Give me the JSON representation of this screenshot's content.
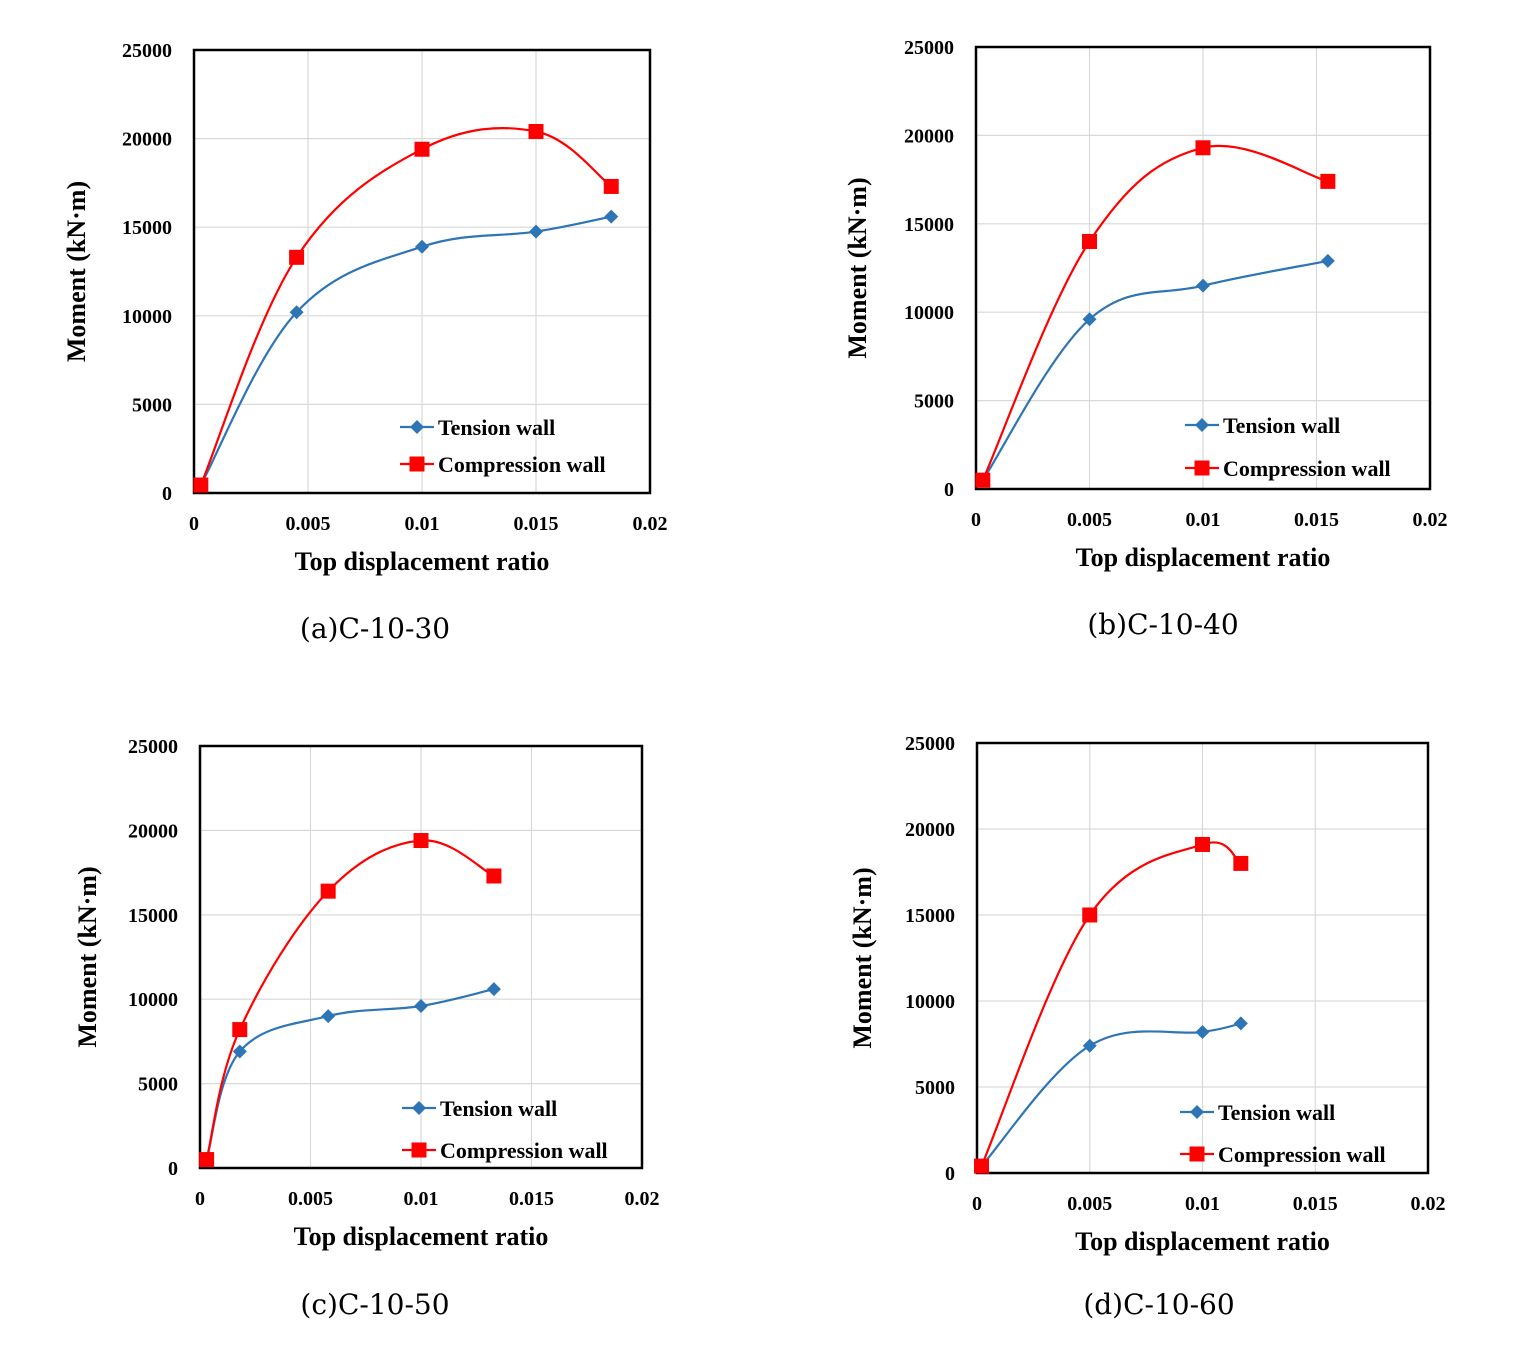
{
  "colors": {
    "tension": "#2e75b6",
    "compression": "#ff0000",
    "grid": "#d9d9d9",
    "frame": "#000000"
  },
  "legend_placement": "bottom-right",
  "chart_data": [
    {
      "type": "line",
      "caption": "(a)C-10-30",
      "xlabel": "Top displacement ratio",
      "ylabel": "Moment (kN·m)",
      "xlim": [
        0,
        0.02
      ],
      "ylim": [
        0,
        25000
      ],
      "xticks": [
        "0",
        "0.005",
        "0.01",
        "0.015",
        "0.02"
      ],
      "yticks": [
        "0",
        "5000",
        "10000",
        "15000",
        "20000",
        "25000"
      ],
      "grid": true,
      "series": [
        {
          "name": "Tension wall",
          "marker": "diamond",
          "points": [
            [
              0.0003,
              450
            ],
            [
              0.0045,
              10200
            ],
            [
              0.01,
              13900
            ],
            [
              0.015,
              14750
            ],
            [
              0.0183,
              15600
            ]
          ]
        },
        {
          "name": "Compression wall",
          "marker": "square",
          "points": [
            [
              0.0003,
              450
            ],
            [
              0.0045,
              13300
            ],
            [
              0.01,
              19400
            ],
            [
              0.015,
              20400
            ],
            [
              0.0183,
              17300
            ]
          ]
        }
      ]
    },
    {
      "type": "line",
      "caption": "(b)C-10-40",
      "xlabel": "Top displacement ratio",
      "ylabel": "Moment (kN·m)",
      "xlim": [
        0,
        0.02
      ],
      "ylim": [
        0,
        25000
      ],
      "xticks": [
        "0",
        "0.005",
        "0.01",
        "0.015",
        "0.02"
      ],
      "yticks": [
        "0",
        "5000",
        "10000",
        "15000",
        "20000",
        "25000"
      ],
      "grid": true,
      "series": [
        {
          "name": "Tension wall",
          "marker": "diamond",
          "points": [
            [
              0.0003,
              500
            ],
            [
              0.005,
              9600
            ],
            [
              0.01,
              11500
            ],
            [
              0.0155,
              12900
            ]
          ]
        },
        {
          "name": "Compression wall",
          "marker": "square",
          "points": [
            [
              0.0003,
              500
            ],
            [
              0.005,
              14000
            ],
            [
              0.01,
              19300
            ],
            [
              0.0155,
              17400
            ]
          ]
        }
      ]
    },
    {
      "type": "line",
      "caption": "(c)C-10-50",
      "xlabel": "Top displacement ratio",
      "ylabel": "Moment (kN·m)",
      "xlim": [
        0,
        0.02
      ],
      "ylim": [
        0,
        25000
      ],
      "xticks": [
        "0",
        "0.005",
        "0.01",
        "0.015",
        "0.02"
      ],
      "yticks": [
        "0",
        "5000",
        "10000",
        "15000",
        "20000",
        "25000"
      ],
      "grid": true,
      "series": [
        {
          "name": "Tension wall",
          "marker": "diamond",
          "points": [
            [
              0.0003,
              500
            ],
            [
              0.0018,
              6900
            ],
            [
              0.0058,
              9000
            ],
            [
              0.01,
              9600
            ],
            [
              0.0133,
              10600
            ]
          ]
        },
        {
          "name": "Compression wall",
          "marker": "square",
          "points": [
            [
              0.0003,
              500
            ],
            [
              0.0018,
              8200
            ],
            [
              0.0058,
              16400
            ],
            [
              0.01,
              19400
            ],
            [
              0.0133,
              17300
            ]
          ]
        }
      ]
    },
    {
      "type": "line",
      "caption": "(d)C-10-60",
      "xlabel": "Top displacement ratio",
      "ylabel": "Moment (kN·m)",
      "xlim": [
        0,
        0.02
      ],
      "ylim": [
        0,
        25000
      ],
      "xticks": [
        "0",
        "0.005",
        "0.01",
        "0.015",
        "0.02"
      ],
      "yticks": [
        "0",
        "5000",
        "10000",
        "15000",
        "20000",
        "25000"
      ],
      "grid": true,
      "series": [
        {
          "name": "Tension wall",
          "marker": "diamond",
          "points": [
            [
              0.0002,
              400
            ],
            [
              0.005,
              7400
            ],
            [
              0.01,
              8200
            ],
            [
              0.0117,
              8700
            ]
          ]
        },
        {
          "name": "Compression wall",
          "marker": "square",
          "points": [
            [
              0.0002,
              400
            ],
            [
              0.005,
              15000
            ],
            [
              0.01,
              19100
            ],
            [
              0.0117,
              18000
            ]
          ]
        }
      ]
    }
  ]
}
